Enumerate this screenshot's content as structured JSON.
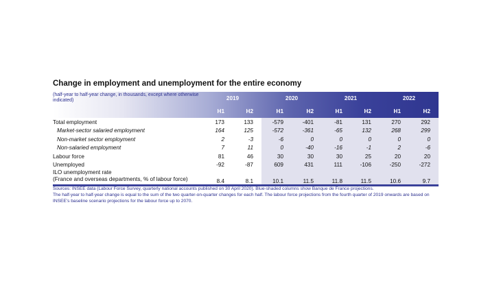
{
  "title": "Change in employment and unemployment for the entire economy",
  "note": "(half-year to half-year change, in thousands, except where otherwise indicated)",
  "years": [
    "2019",
    "2020",
    "2021",
    "2022"
  ],
  "halves": [
    "H1",
    "H2",
    "H1",
    "H2",
    "H1",
    "H2",
    "H1",
    "H2"
  ],
  "rows": [
    {
      "label": "Total employment",
      "italic": false,
      "values": [
        "173",
        "133",
        "-579",
        "-401",
        "-81",
        "131",
        "270",
        "292"
      ]
    },
    {
      "label": "Market-sector salaried employment",
      "italic": true,
      "values": [
        "164",
        "125",
        "-572",
        "-361",
        "-65",
        "132",
        "268",
        "299"
      ]
    },
    {
      "label": "Non-market sector employment",
      "italic": true,
      "values": [
        "2",
        "-3",
        "-6",
        "0",
        "0",
        "0",
        "0",
        "0"
      ]
    },
    {
      "label": "Non-salaried employment",
      "italic": true,
      "values": [
        "7",
        "11",
        "0",
        "-40",
        "-16",
        "-1",
        "2",
        "-6"
      ]
    },
    {
      "label": "Labour force",
      "italic": false,
      "values": [
        "81",
        "46",
        "30",
        "30",
        "30",
        "25",
        "20",
        "20"
      ]
    },
    {
      "label": "Unemployed",
      "italic": false,
      "values": [
        "-92",
        "-87",
        "609",
        "431",
        "111",
        "-106",
        "-250",
        "-272"
      ]
    },
    {
      "label": "ILO unemployment rate",
      "label2": "(France and overseas departments, % of labour force)",
      "italic": false,
      "values": [
        "8.4",
        "8.1",
        "10.1",
        "11.5",
        "11.8",
        "11.5",
        "10.6",
        "9.7"
      ]
    }
  ],
  "sources": [
    "Sources: INSEE data (Labour Force Survey, quarterly national accounts published on 30 April 2020). Blue-shaded columns show Banque de France projections.",
    "The half-year to half-year change is equal to the sum of the two quarter-on-quarter changes for each half. The labour force projections from the fourth quarter of 2019 onwards are based on INSEE’s baseline scenario projections for the labour force up to 2070."
  ]
}
